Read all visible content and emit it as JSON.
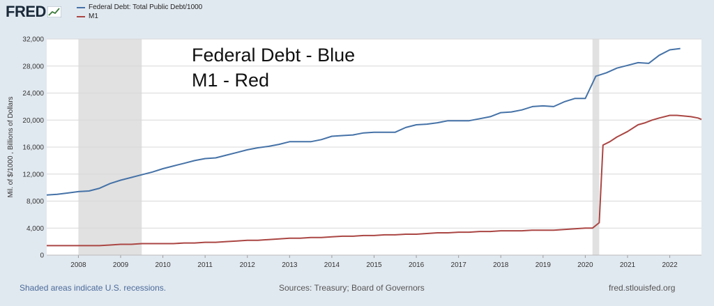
{
  "header": {
    "brand": "FRED",
    "brand_icon": "fred-chart-icon"
  },
  "legend": [
    {
      "label": "Federal Debt: Total Public Debt/1000",
      "color": "#4572a7"
    },
    {
      "label": "M1",
      "color": "#aa4643"
    }
  ],
  "annotation": {
    "line1": "Federal Debt - Blue",
    "line2": "M1 - Red"
  },
  "chart_data": {
    "type": "line",
    "ylabel": "Mil. of $/1000 , Billions of Dollars",
    "ylim": [
      0,
      32000
    ],
    "xlim": [
      2007.25,
      2022.75
    ],
    "yticks": [
      "0",
      "4,000",
      "8,000",
      "12,000",
      "16,000",
      "20,000",
      "24,000",
      "28,000",
      "32,000"
    ],
    "xticks": [
      "2008",
      "2009",
      "2010",
      "2011",
      "2012",
      "2013",
      "2014",
      "2015",
      "2016",
      "2017",
      "2018",
      "2019",
      "2020",
      "2021",
      "2022"
    ],
    "grid": true,
    "legend_position": "top-left",
    "recessions": [
      [
        2008.0,
        2009.5
      ],
      [
        2020.17,
        2020.33
      ]
    ],
    "series": [
      {
        "name": "Federal Debt: Total Public Debt/1000",
        "color": "#4572a7",
        "x": [
          2007.25,
          2007.5,
          2007.75,
          2008.0,
          2008.25,
          2008.5,
          2008.75,
          2009.0,
          2009.25,
          2009.5,
          2009.75,
          2010.0,
          2010.25,
          2010.5,
          2010.75,
          2011.0,
          2011.25,
          2011.5,
          2011.75,
          2012.0,
          2012.25,
          2012.5,
          2012.75,
          2013.0,
          2013.25,
          2013.5,
          2013.75,
          2014.0,
          2014.25,
          2014.5,
          2014.75,
          2015.0,
          2015.25,
          2015.5,
          2015.75,
          2016.0,
          2016.25,
          2016.5,
          2016.75,
          2017.0,
          2017.25,
          2017.5,
          2017.75,
          2018.0,
          2018.25,
          2018.5,
          2018.75,
          2019.0,
          2019.25,
          2019.5,
          2019.75,
          2020.0,
          2020.25,
          2020.5,
          2020.75,
          2021.0,
          2021.25,
          2021.5,
          2021.75,
          2022.0,
          2022.25
        ],
        "values": [
          8900,
          9000,
          9200,
          9400,
          9500,
          9900,
          10600,
          11100,
          11500,
          11900,
          12300,
          12800,
          13200,
          13600,
          14000,
          14300,
          14400,
          14800,
          15200,
          15600,
          15900,
          16100,
          16400,
          16800,
          16800,
          16800,
          17100,
          17600,
          17700,
          17800,
          18100,
          18200,
          18200,
          18200,
          18900,
          19300,
          19400,
          19600,
          19900,
          19900,
          19900,
          20200,
          20500,
          21100,
          21200,
          21500,
          22000,
          22100,
          22000,
          22700,
          23200,
          23200,
          26500,
          27000,
          27700,
          28100,
          28500,
          28400,
          29600,
          30400,
          30600
        ]
      },
      {
        "name": "M1",
        "color": "#aa4643",
        "x": [
          2007.25,
          2007.5,
          2007.75,
          2008.0,
          2008.25,
          2008.5,
          2008.75,
          2009.0,
          2009.25,
          2009.5,
          2009.75,
          2010.0,
          2010.25,
          2010.5,
          2010.75,
          2011.0,
          2011.25,
          2011.5,
          2011.75,
          2012.0,
          2012.25,
          2012.5,
          2012.75,
          2013.0,
          2013.25,
          2013.5,
          2013.75,
          2014.0,
          2014.25,
          2014.5,
          2014.75,
          2015.0,
          2015.25,
          2015.5,
          2015.75,
          2016.0,
          2016.25,
          2016.5,
          2016.75,
          2017.0,
          2017.25,
          2017.5,
          2017.75,
          2018.0,
          2018.25,
          2018.5,
          2018.75,
          2019.0,
          2019.25,
          2019.5,
          2019.75,
          2020.0,
          2020.17,
          2020.33,
          2020.42,
          2020.58,
          2020.75,
          2021.0,
          2021.25,
          2021.42,
          2021.58,
          2021.75,
          2022.0,
          2022.17,
          2022.33,
          2022.5,
          2022.67,
          2022.75
        ],
        "values": [
          1400,
          1400,
          1400,
          1400,
          1400,
          1400,
          1500,
          1600,
          1600,
          1700,
          1700,
          1700,
          1700,
          1800,
          1800,
          1900,
          1900,
          2000,
          2100,
          2200,
          2200,
          2300,
          2400,
          2500,
          2500,
          2600,
          2600,
          2700,
          2800,
          2800,
          2900,
          2900,
          3000,
          3000,
          3100,
          3100,
          3200,
          3300,
          3300,
          3400,
          3400,
          3500,
          3500,
          3600,
          3600,
          3600,
          3700,
          3700,
          3700,
          3800,
          3900,
          4000,
          4000,
          4800,
          16300,
          16800,
          17500,
          18300,
          19300,
          19600,
          20000,
          20300,
          20700,
          20700,
          20600,
          20500,
          20300,
          20100
        ]
      }
    ]
  },
  "footer": {
    "recessions_note": "Shaded areas indicate U.S. recessions.",
    "sources": "Sources: Treasury; Board of Governors",
    "site": "fred.stlouisfed.org"
  }
}
